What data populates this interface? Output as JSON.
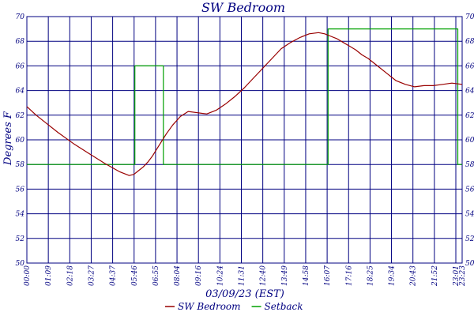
{
  "chart_data": {
    "type": "line",
    "title": "SW Bedroom",
    "xlabel": "03/09/23 (EST)",
    "ylabel": "Degrees F",
    "ylim": [
      50,
      70
    ],
    "yticks": [
      50,
      52,
      54,
      56,
      58,
      60,
      62,
      64,
      66,
      68,
      70
    ],
    "xlim": [
      0,
      1403
    ],
    "x_unit": "minutes",
    "xtick_labels": [
      "00:00",
      "01:09",
      "02:18",
      "03:27",
      "04:37",
      "05:46",
      "06:55",
      "08:04",
      "09:16",
      "10:24",
      "11:31",
      "12:40",
      "13:49",
      "14:58",
      "16:07",
      "17:16",
      "18:25",
      "19:34",
      "20:43",
      "21:52",
      "23:01",
      "23:23"
    ],
    "grid": true,
    "legend_position": "bottom",
    "colors": {
      "background": "#ffffff",
      "plot_background": "#ffffff",
      "grid": "#000080",
      "text": "#000080"
    },
    "series": [
      {
        "name": "SW Bedroom",
        "color": "#990000",
        "x": [
          0,
          30,
          60,
          100,
          150,
          200,
          250,
          300,
          330,
          345,
          360,
          375,
          390,
          405,
          420,
          435,
          450,
          470,
          495,
          520,
          550,
          580,
          610,
          640,
          670,
          700,
          730,
          760,
          790,
          820,
          850,
          880,
          910,
          940,
          960,
          980,
          1000,
          1020,
          1040,
          1060,
          1080,
          1100,
          1130,
          1160,
          1190,
          1220,
          1250,
          1280,
          1310,
          1340,
          1370,
          1403
        ],
        "values": [
          62.7,
          62.0,
          61.4,
          60.6,
          59.7,
          58.9,
          58.1,
          57.4,
          57.1,
          57.2,
          57.5,
          57.8,
          58.2,
          58.7,
          59.3,
          59.9,
          60.5,
          61.2,
          61.9,
          62.3,
          62.2,
          62.1,
          62.4,
          62.9,
          63.5,
          64.2,
          65.0,
          65.8,
          66.6,
          67.4,
          67.9,
          68.3,
          68.6,
          68.7,
          68.6,
          68.4,
          68.2,
          67.9,
          67.6,
          67.3,
          66.9,
          66.6,
          66.0,
          65.4,
          64.8,
          64.5,
          64.3,
          64.4,
          64.4,
          64.5,
          64.6,
          64.5
        ]
      },
      {
        "name": "Setback",
        "color": "#00a000",
        "x": [
          0,
          348,
          348,
          440,
          440,
          971,
          971,
          1389,
          1389,
          1403
        ],
        "values": [
          58,
          58,
          66,
          66,
          58,
          58,
          69,
          69,
          58,
          58
        ]
      }
    ]
  }
}
